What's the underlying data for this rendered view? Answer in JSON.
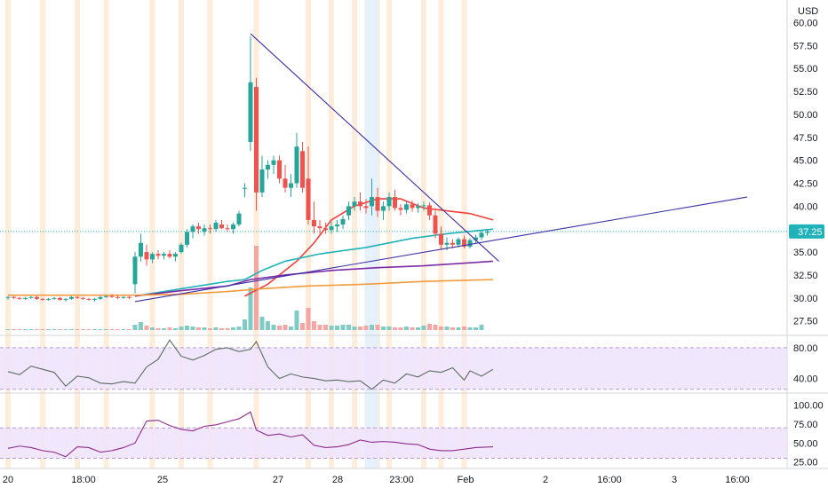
{
  "currency_label": "USD",
  "last_price_label": "37.25",
  "colors": {
    "up": "#26a69a",
    "down": "#ef5350",
    "vol_up": "#80cbc4",
    "vol_down": "#f5a6a3",
    "ma_red": "#f23f3a",
    "ma_teal": "#1fb2b8",
    "ma_purple": "#7b2aa8",
    "ma_orange": "#f59a3a",
    "trendline": "#3b2fa5",
    "rsi_line": "#5b6b62",
    "stoch_line": "#8e2a8e",
    "band_fill": "#efe3fb",
    "session_highlight": "#fde8d1",
    "highlight_blue": "#e3f0fb",
    "last_price_badge": "#1fb2b8"
  },
  "chart_data": [
    {
      "type": "candlestick",
      "name": "price",
      "y_unit": "USD",
      "ylim": [
        26.5,
        61.5
      ],
      "y_ticks": [
        "27.50",
        "30.00",
        "32.50",
        "35.00",
        "37.50",
        "40.00",
        "42.50",
        "45.00",
        "47.50",
        "50.00",
        "52.50",
        "55.00",
        "57.50",
        "60.00"
      ],
      "x_tick_labels": [
        "20",
        "18:00",
        "25",
        "27",
        "28",
        "23:00",
        "Feb",
        "2",
        "16:00",
        "3",
        "16:00"
      ],
      "last_price": 37.25,
      "candles": [
        [
          30.0,
          30.2,
          29.8,
          30.1
        ],
        [
          30.1,
          30.2,
          29.9,
          30.0
        ],
        [
          30.0,
          30.1,
          29.8,
          29.9
        ],
        [
          29.9,
          30.1,
          29.8,
          30.0
        ],
        [
          30.0,
          30.2,
          29.9,
          30.1
        ],
        [
          30.1,
          30.2,
          29.8,
          29.9
        ],
        [
          29.9,
          30.0,
          29.7,
          29.8
        ],
        [
          29.8,
          30.0,
          29.7,
          29.9
        ],
        [
          29.9,
          30.1,
          29.8,
          30.0
        ],
        [
          30.0,
          30.1,
          29.7,
          29.8
        ],
        [
          29.8,
          30.0,
          29.6,
          29.9
        ],
        [
          29.9,
          30.2,
          29.8,
          30.1
        ],
        [
          30.1,
          30.2,
          29.9,
          30.0
        ],
        [
          30.0,
          30.1,
          29.8,
          29.9
        ],
        [
          29.9,
          30.0,
          29.7,
          29.8
        ],
        [
          29.8,
          30.0,
          29.6,
          29.9
        ],
        [
          29.9,
          30.2,
          29.8,
          30.1
        ],
        [
          30.1,
          30.3,
          30.0,
          30.2
        ],
        [
          30.2,
          30.4,
          30.0,
          30.1
        ],
        [
          30.1,
          30.3,
          29.9,
          30.0
        ],
        [
          30.0,
          30.2,
          29.9,
          30.1
        ],
        [
          30.1,
          30.2,
          29.9,
          30.0
        ],
        [
          31.5,
          35.0,
          30.5,
          34.5
        ],
        [
          34.5,
          37.0,
          34.0,
          36.0
        ],
        [
          35.0,
          35.8,
          33.5,
          34.2
        ],
        [
          34.2,
          35.0,
          33.8,
          34.8
        ],
        [
          34.8,
          35.2,
          34.2,
          34.6
        ],
        [
          34.6,
          35.0,
          34.2,
          34.8
        ],
        [
          34.8,
          35.2,
          34.3,
          34.5
        ],
        [
          34.5,
          35.0,
          34.0,
          34.8
        ],
        [
          35.0,
          36.0,
          34.8,
          35.8
        ],
        [
          35.8,
          37.5,
          35.5,
          37.2
        ],
        [
          37.2,
          38.0,
          36.5,
          37.8
        ],
        [
          37.8,
          38.2,
          37.0,
          37.5
        ],
        [
          37.2,
          38.0,
          36.8,
          37.6
        ],
        [
          37.6,
          38.0,
          37.0,
          37.5
        ],
        [
          37.5,
          38.5,
          37.2,
          38.2
        ],
        [
          38.0,
          38.5,
          37.5,
          37.6
        ],
        [
          37.6,
          38.0,
          37.2,
          37.5
        ],
        [
          37.5,
          38.2,
          37.0,
          38.0
        ],
        [
          38.0,
          39.5,
          37.8,
          39.2
        ],
        [
          42.0,
          42.5,
          41.0,
          42.0
        ],
        [
          47.0,
          58.5,
          46.0,
          53.5
        ],
        [
          53.0,
          54.0,
          39.5,
          41.5
        ],
        [
          41.5,
          45.5,
          41.0,
          44.0
        ],
        [
          44.0,
          45.0,
          43.0,
          44.5
        ],
        [
          44.5,
          45.5,
          43.5,
          45.0
        ],
        [
          45.0,
          45.5,
          42.5,
          43.0
        ],
        [
          43.0,
          44.5,
          41.5,
          42.0
        ],
        [
          42.0,
          43.5,
          41.0,
          42.5
        ],
        [
          42.5,
          48.0,
          42.0,
          46.5
        ],
        [
          46.0,
          47.0,
          41.5,
          42.0
        ],
        [
          43.0,
          46.5,
          38.0,
          38.5
        ],
        [
          38.5,
          40.5,
          37.0,
          37.8
        ],
        [
          37.8,
          38.5,
          37.0,
          37.6
        ],
        [
          37.6,
          38.2,
          37.0,
          37.4
        ],
        [
          37.4,
          38.3,
          37.0,
          37.8
        ],
        [
          37.8,
          38.5,
          37.2,
          38.0
        ],
        [
          38.0,
          39.0,
          37.5,
          38.6
        ],
        [
          39.0,
          40.5,
          38.5,
          40.0
        ],
        [
          40.0,
          41.0,
          39.5,
          40.5
        ],
        [
          40.5,
          41.5,
          39.5,
          40.0
        ],
        [
          40.0,
          40.8,
          39.2,
          39.8
        ],
        [
          40.0,
          43.0,
          39.0,
          41.0
        ],
        [
          41.0,
          42.0,
          38.8,
          39.5
        ],
        [
          39.5,
          40.5,
          38.5,
          40.0
        ],
        [
          40.0,
          41.5,
          39.5,
          41.0
        ],
        [
          41.0,
          41.8,
          39.5,
          39.8
        ],
        [
          39.8,
          40.2,
          39.0,
          39.6
        ],
        [
          39.6,
          40.5,
          39.2,
          40.2
        ],
        [
          40.2,
          40.6,
          39.4,
          39.8
        ],
        [
          39.8,
          40.3,
          39.3,
          40.0
        ],
        [
          40.0,
          40.5,
          39.5,
          40.1
        ],
        [
          40.1,
          40.4,
          38.5,
          39.0
        ],
        [
          39.0,
          39.5,
          36.5,
          37.0
        ],
        [
          37.0,
          37.8,
          35.3,
          35.8
        ],
        [
          35.8,
          36.6,
          35.2,
          36.0
        ],
        [
          36.0,
          36.4,
          35.4,
          35.8
        ],
        [
          35.8,
          36.6,
          35.5,
          36.4
        ],
        [
          36.4,
          36.8,
          35.4,
          35.6
        ],
        [
          35.6,
          36.5,
          35.4,
          36.3
        ],
        [
          36.3,
          36.9,
          36.0,
          36.6
        ],
        [
          36.6,
          37.4,
          36.3,
          37.1
        ],
        [
          37.1,
          37.5,
          36.8,
          37.25
        ]
      ],
      "volume": [
        1,
        1,
        1,
        1,
        1,
        1,
        1,
        1,
        1,
        1,
        1,
        1,
        1,
        1,
        1,
        1,
        1,
        1,
        1,
        1,
        1,
        1,
        6,
        9,
        5,
        3,
        2,
        2,
        3,
        2,
        4,
        5,
        4,
        3,
        3,
        2,
        3,
        2,
        2,
        3,
        4,
        12,
        48,
        95,
        15,
        10,
        6,
        5,
        6,
        4,
        22,
        8,
        25,
        10,
        6,
        6,
        5,
        5,
        6,
        6,
        4,
        4,
        5,
        6,
        6,
        4,
        4,
        3,
        3,
        4,
        3,
        3,
        5,
        7,
        6,
        4,
        4,
        3,
        3,
        4,
        3,
        3,
        6
      ],
      "overlays": [
        {
          "name": "ma_red",
          "color_key": "ma_red",
          "points": [
            [
              41,
              30.2
            ],
            [
              45,
              31.5
            ],
            [
              50,
              34.0
            ],
            [
              53,
              36.0
            ],
            [
              56,
              38.5
            ],
            [
              60,
              40.0
            ],
            [
              64,
              40.8
            ],
            [
              68,
              40.8
            ],
            [
              72,
              39.8
            ],
            [
              76,
              39.5
            ],
            [
              80,
              39.2
            ],
            [
              84,
              38.5
            ]
          ]
        },
        {
          "name": "ma_teal",
          "color_key": "ma_teal",
          "points": [
            [
              22,
              30.2
            ],
            [
              30,
              31.0
            ],
            [
              38,
              31.8
            ],
            [
              41,
              32.0
            ],
            [
              44,
              33.0
            ],
            [
              48,
              34.0
            ],
            [
              54,
              34.8
            ],
            [
              62,
              35.5
            ],
            [
              70,
              36.5
            ],
            [
              76,
              37.0
            ],
            [
              84,
              37.5
            ]
          ]
        },
        {
          "name": "ma_purple",
          "color_key": "ma_purple",
          "points": [
            [
              22,
              30.2
            ],
            [
              30,
              30.8
            ],
            [
              38,
              31.3
            ],
            [
              42,
              32.0
            ],
            [
              48,
              32.5
            ],
            [
              56,
              33.0
            ],
            [
              64,
              33.3
            ],
            [
              72,
              33.5
            ],
            [
              84,
              34.0
            ]
          ]
        },
        {
          "name": "ma_orange",
          "color_key": "ma_orange",
          "points": [
            [
              0,
              30.3
            ],
            [
              22,
              30.3
            ],
            [
              30,
              30.4
            ],
            [
              38,
              30.7
            ],
            [
              44,
              31.0
            ],
            [
              52,
              31.3
            ],
            [
              62,
              31.5
            ],
            [
              72,
              31.8
            ],
            [
              84,
              32.0
            ]
          ]
        }
      ],
      "trendlines": [
        {
          "name": "descending-line",
          "from": [
            42,
            58.8
          ],
          "to": [
            85,
            34.0
          ]
        },
        {
          "name": "ascending-line",
          "from": [
            22,
            29.6
          ],
          "to": [
            128,
            41.0
          ]
        }
      ],
      "session_highlight_bars": [
        0,
        6,
        12,
        17,
        25,
        30,
        35,
        43,
        52,
        56,
        60,
        64,
        66,
        72,
        75,
        79
      ],
      "highlight_blue_bars": [
        63
      ]
    },
    {
      "type": "line",
      "name": "oscillator-1",
      "ylim": [
        28.0,
        88.0
      ],
      "y_ticks": [
        "40.00",
        "80.00"
      ],
      "band": [
        26.0,
        80.0
      ],
      "values": [
        [
          0,
          49
        ],
        [
          2,
          45
        ],
        [
          4,
          56
        ],
        [
          6,
          52
        ],
        [
          8,
          48
        ],
        [
          10,
          30
        ],
        [
          12,
          43
        ],
        [
          14,
          41
        ],
        [
          16,
          34
        ],
        [
          18,
          33
        ],
        [
          20,
          36
        ],
        [
          22,
          34
        ],
        [
          24,
          55
        ],
        [
          26,
          65
        ],
        [
          28,
          90
        ],
        [
          30,
          69
        ],
        [
          32,
          64
        ],
        [
          34,
          70
        ],
        [
          36,
          78
        ],
        [
          38,
          80
        ],
        [
          40,
          75
        ],
        [
          42,
          78
        ],
        [
          43,
          88
        ],
        [
          45,
          55
        ],
        [
          47,
          40
        ],
        [
          49,
          46
        ],
        [
          51,
          42
        ],
        [
          53,
          40
        ],
        [
          55,
          37
        ],
        [
          57,
          38
        ],
        [
          59,
          36
        ],
        [
          61,
          37
        ],
        [
          63,
          26
        ],
        [
          65,
          38
        ],
        [
          67,
          34
        ],
        [
          69,
          46
        ],
        [
          71,
          42
        ],
        [
          73,
          50
        ],
        [
          75,
          48
        ],
        [
          77,
          54
        ],
        [
          79,
          38
        ],
        [
          80,
          50
        ],
        [
          82,
          43
        ],
        [
          84,
          52
        ]
      ]
    },
    {
      "type": "line",
      "name": "oscillator-2",
      "ylim": [
        20.0,
        110.0
      ],
      "y_ticks": [
        "25.00",
        "50.00",
        "75.00",
        "100.00"
      ],
      "band": [
        30.0,
        70.0
      ],
      "values": [
        [
          0,
          43
        ],
        [
          2,
          46
        ],
        [
          4,
          44
        ],
        [
          6,
          40
        ],
        [
          8,
          38
        ],
        [
          10,
          32
        ],
        [
          12,
          45
        ],
        [
          14,
          44
        ],
        [
          16,
          38
        ],
        [
          18,
          40
        ],
        [
          20,
          44
        ],
        [
          22,
          50
        ],
        [
          24,
          79
        ],
        [
          26,
          80
        ],
        [
          28,
          73
        ],
        [
          30,
          68
        ],
        [
          32,
          66
        ],
        [
          34,
          72
        ],
        [
          36,
          74
        ],
        [
          38,
          78
        ],
        [
          40,
          82
        ],
        [
          42,
          91
        ],
        [
          43,
          67
        ],
        [
          45,
          60
        ],
        [
          47,
          62
        ],
        [
          49,
          58
        ],
        [
          51,
          61
        ],
        [
          53,
          47
        ],
        [
          55,
          44
        ],
        [
          57,
          45
        ],
        [
          59,
          48
        ],
        [
          61,
          54
        ],
        [
          63,
          51
        ],
        [
          65,
          52
        ],
        [
          67,
          51
        ],
        [
          69,
          49
        ],
        [
          71,
          48
        ],
        [
          73,
          42
        ],
        [
          75,
          40
        ],
        [
          77,
          40
        ],
        [
          79,
          42
        ],
        [
          81,
          44
        ],
        [
          84,
          45
        ]
      ]
    }
  ]
}
